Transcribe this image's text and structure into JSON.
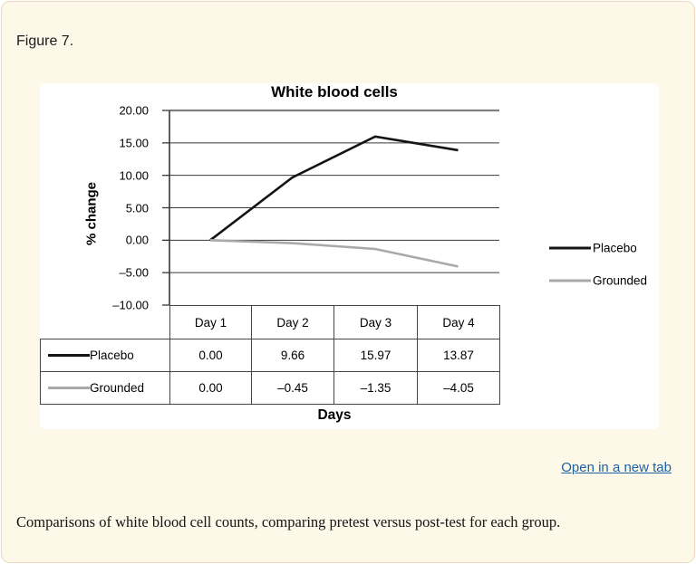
{
  "figure": {
    "label": "Figure 7.",
    "open_link": "Open in a new tab",
    "caption": "Comparisons of white blood cell counts, comparing pretest versus post-test for each group.",
    "link_color": "#1a63a5",
    "card_background": "#fdf8e8",
    "card_border_color": "#efd8c1"
  },
  "chart_data": {
    "type": "line",
    "title": "White blood cells",
    "xlabel": "Days",
    "ylabel": "% change",
    "categories": [
      "Day 1",
      "Day 2",
      "Day 3",
      "Day 4"
    ],
    "series": [
      {
        "name": "Placebo",
        "color": "#141414",
        "values": [
          0.0,
          9.66,
          15.97,
          13.87
        ]
      },
      {
        "name": "Grounded",
        "color": "#a9a9a9",
        "values": [
          0.0,
          -0.45,
          -1.35,
          -4.05
        ]
      }
    ],
    "ylim": [
      -10,
      20
    ],
    "yticks": [
      {
        "value": 20,
        "label": "20.00"
      },
      {
        "value": 15,
        "label": "15.00"
      },
      {
        "value": 10,
        "label": "10.00"
      },
      {
        "value": 5,
        "label": "5.00"
      },
      {
        "value": 0,
        "label": "0.00"
      },
      {
        "value": -5,
        "label": "–5.00"
      },
      {
        "value": -10,
        "label": "–10.00"
      }
    ],
    "grid": true,
    "legend_position": "right",
    "table": {
      "col_headers": [
        "Day 1",
        "Day 2",
        "Day 3",
        "Day 4"
      ],
      "rows": [
        {
          "label": "Placebo",
          "values": [
            "0.00",
            "9.66",
            "15.97",
            "13.87"
          ]
        },
        {
          "label": "Grounded",
          "values": [
            "0.00",
            "–0.45",
            "–1.35",
            "–4.05"
          ]
        }
      ]
    }
  }
}
